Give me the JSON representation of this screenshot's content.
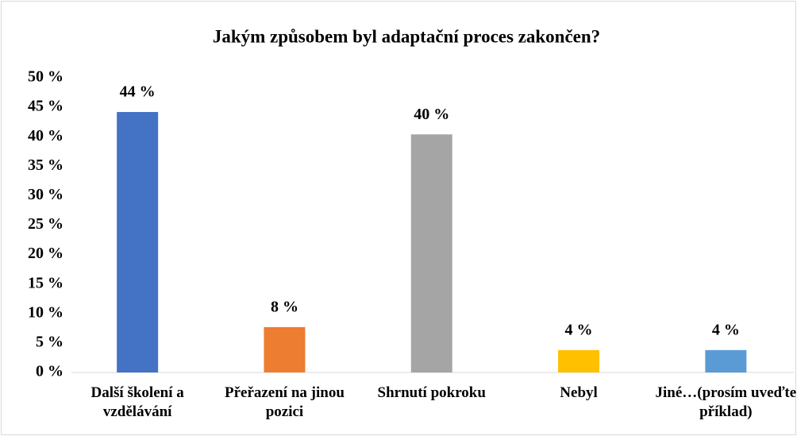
{
  "chart_data": {
    "type": "bar",
    "title": "Jakým způsobem byl adaptační proces zakončen?",
    "categories": [
      "Další školení a vzdělávání",
      "Přeřazení na jinou pozici",
      "Shrnutí pokroku",
      "Nebyl",
      "Jiné…(prosím uveďte příklad)"
    ],
    "values": [
      44.2,
      7.7,
      40.4,
      3.8,
      3.8
    ],
    "value_labels": [
      "44 %",
      "8 %",
      "40 %",
      "4 %",
      "4 %"
    ],
    "colors": [
      "#4472c4",
      "#ed7d31",
      "#a5a5a5",
      "#ffc000",
      "#5b9bd5"
    ],
    "ylim": [
      0,
      50
    ],
    "yticks": [
      {
        "value": 0,
        "label": "0 %"
      },
      {
        "value": 5,
        "label": "5 %"
      },
      {
        "value": 10,
        "label": "10 %"
      },
      {
        "value": 15,
        "label": "15 %"
      },
      {
        "value": 20,
        "label": "20 %"
      },
      {
        "value": 25,
        "label": "25 %"
      },
      {
        "value": 30,
        "label": "30 %"
      },
      {
        "value": 35,
        "label": "35 %"
      },
      {
        "value": 40,
        "label": "40 %"
      },
      {
        "value": 45,
        "label": "45 %"
      },
      {
        "value": 50,
        "label": "50 %"
      }
    ],
    "grid": false
  }
}
